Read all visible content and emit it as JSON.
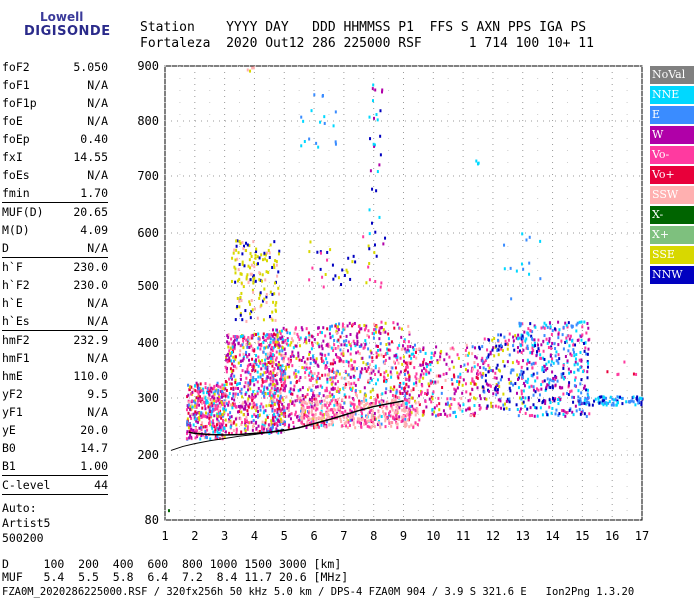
{
  "logo": {
    "line1": "Lowell",
    "line2": "DIGISONDE"
  },
  "header": {
    "labels": "Station    YYYY DAY   DDD HHMMSS P1  FFS S AXN PPS IGA PS",
    "values": "Fortaleza  2020 Out12 286 225000 RSF      1 714 100 10+ 11"
  },
  "params": [
    {
      "label": "foF2",
      "value": "5.050"
    },
    {
      "label": "foF1",
      "value": "N/A"
    },
    {
      "label": "foF1p",
      "value": "N/A"
    },
    {
      "label": "foE",
      "value": "N/A"
    },
    {
      "label": "foEp",
      "value": "0.40"
    },
    {
      "label": "fxI",
      "value": "14.55"
    },
    {
      "label": "foEs",
      "value": "N/A"
    },
    {
      "label": "fmin",
      "value": "1.70"
    },
    {
      "sep": true
    },
    {
      "label": "MUF(D)",
      "value": "20.65"
    },
    {
      "label": "M(D)",
      "value": "4.09"
    },
    {
      "label": "D",
      "value": "N/A"
    },
    {
      "sep": true
    },
    {
      "label": "h`F",
      "value": "230.0"
    },
    {
      "label": "h`F2",
      "value": "230.0"
    },
    {
      "label": "h`E",
      "value": "N/A"
    },
    {
      "label": "h`Es",
      "value": "N/A"
    },
    {
      "sep": true
    },
    {
      "label": "hmF2",
      "value": "232.9"
    },
    {
      "label": "hmF1",
      "value": "N/A"
    },
    {
      "label": "hmE",
      "value": "110.0"
    },
    {
      "label": "yF2",
      "value": "9.5"
    },
    {
      "label": "yF1",
      "value": "N/A"
    },
    {
      "label": "yE",
      "value": "20.0"
    },
    {
      "label": "B0",
      "value": "14.7"
    },
    {
      "label": "B1",
      "value": "1.00"
    },
    {
      "sep": true
    },
    {
      "label": "C-level",
      "value": "44"
    },
    {
      "sep": true
    }
  ],
  "auto": {
    "line1": "Auto:",
    "line2": "Artist5",
    "line3": "500200"
  },
  "legend": [
    {
      "label": "NoVal",
      "color": "#808080"
    },
    {
      "label": "NNE",
      "color": "#00d8ff"
    },
    {
      "label": "E",
      "color": "#3a8cff"
    },
    {
      "label": "W",
      "color": "#b000a8"
    },
    {
      "label": "Vo-",
      "color": "#ff3aa0"
    },
    {
      "label": "Vo+",
      "color": "#e8003a"
    },
    {
      "label": "SSW",
      "color": "#ffb0b0"
    },
    {
      "label": "X-",
      "color": "#006400"
    },
    {
      "label": "X+",
      "color": "#7ec07e"
    },
    {
      "label": "SSE",
      "color": "#d8d800"
    },
    {
      "label": "NNW",
      "color": "#0000c0"
    }
  ],
  "bottom": {
    "d_row": "D     100  200  400  600  800 1000 1500 3000 [km]",
    "muf_row": "MUF   5.4  5.5  5.8  6.4  7.2  8.4 11.7 20.6 [MHz]"
  },
  "footer": "FZA0M_2020286225000.RSF / 320fx256h 50 kHz 5.0 km / DPS-4 FZA0M 904 / 3.9 S 321.6 E   Ion2Png 1.3.20",
  "chart_data": {
    "type": "scatter",
    "x_ticks": [
      "1",
      "2",
      "3",
      "4",
      "5",
      "6",
      "7",
      "8",
      "9",
      "10",
      "11",
      "12",
      "13",
      "14",
      "15",
      "16",
      "17"
    ],
    "y_ticks": [
      "80",
      "200",
      "300",
      "400",
      "500",
      "600",
      "700",
      "800",
      "900"
    ],
    "xlim": [
      1,
      17
    ],
    "ylim": [
      80,
      900
    ],
    "grid": true,
    "legend_position": "right",
    "trace_points": [
      [
        1.8,
        240
      ],
      [
        2,
        238
      ],
      [
        2.5,
        236
      ],
      [
        3,
        235
      ],
      [
        3.5,
        236
      ],
      [
        4,
        238
      ],
      [
        4.5,
        240
      ],
      [
        5,
        243
      ],
      [
        5.5,
        248
      ],
      [
        6,
        255
      ],
      [
        6.5,
        262
      ],
      [
        7,
        270
      ],
      [
        7.5,
        278
      ],
      [
        8,
        285
      ],
      [
        8.5,
        290
      ],
      [
        9,
        295
      ]
    ],
    "model_curve": [
      [
        1.2,
        208
      ],
      [
        1.6,
        215
      ],
      [
        2,
        220
      ],
      [
        2.5,
        225
      ],
      [
        3,
        229
      ],
      [
        3.5,
        233
      ],
      [
        4,
        236
      ],
      [
        4.5,
        240
      ],
      [
        5,
        245
      ]
    ]
  }
}
